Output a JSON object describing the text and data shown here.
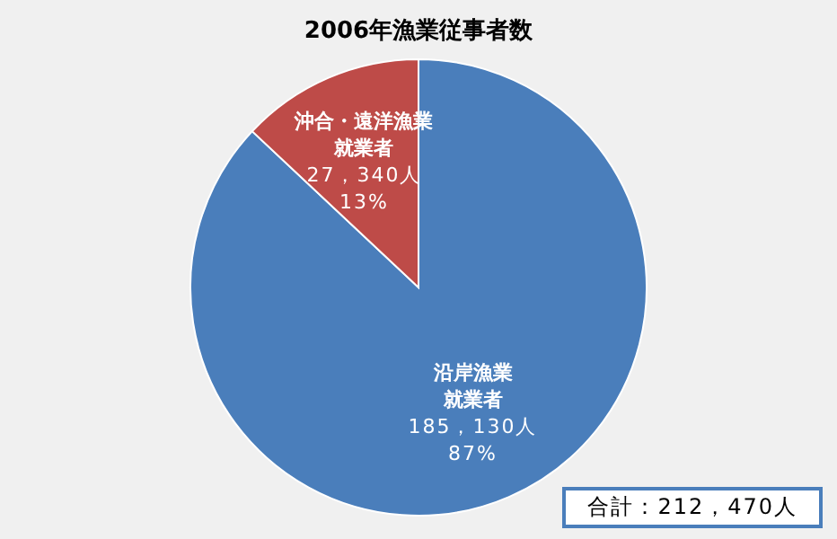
{
  "chart_data": {
    "type": "pie",
    "title": "2006年漁業従事者数",
    "categories": [
      "沿岸漁業就業者",
      "沖合・遠洋漁業就業者"
    ],
    "values": [
      87,
      13
    ],
    "colors": [
      "#4a7ebb",
      "#be4b48"
    ],
    "value_labels": [
      "87%",
      "13%"
    ],
    "annotations": [
      {
        "text": "185，130人",
        "x": "沿岸漁業就業者"
      },
      {
        "text": "27，340人",
        "x": "沖合・遠洋漁業就業者"
      },
      "合計：212，470人"
    ]
  }
}
